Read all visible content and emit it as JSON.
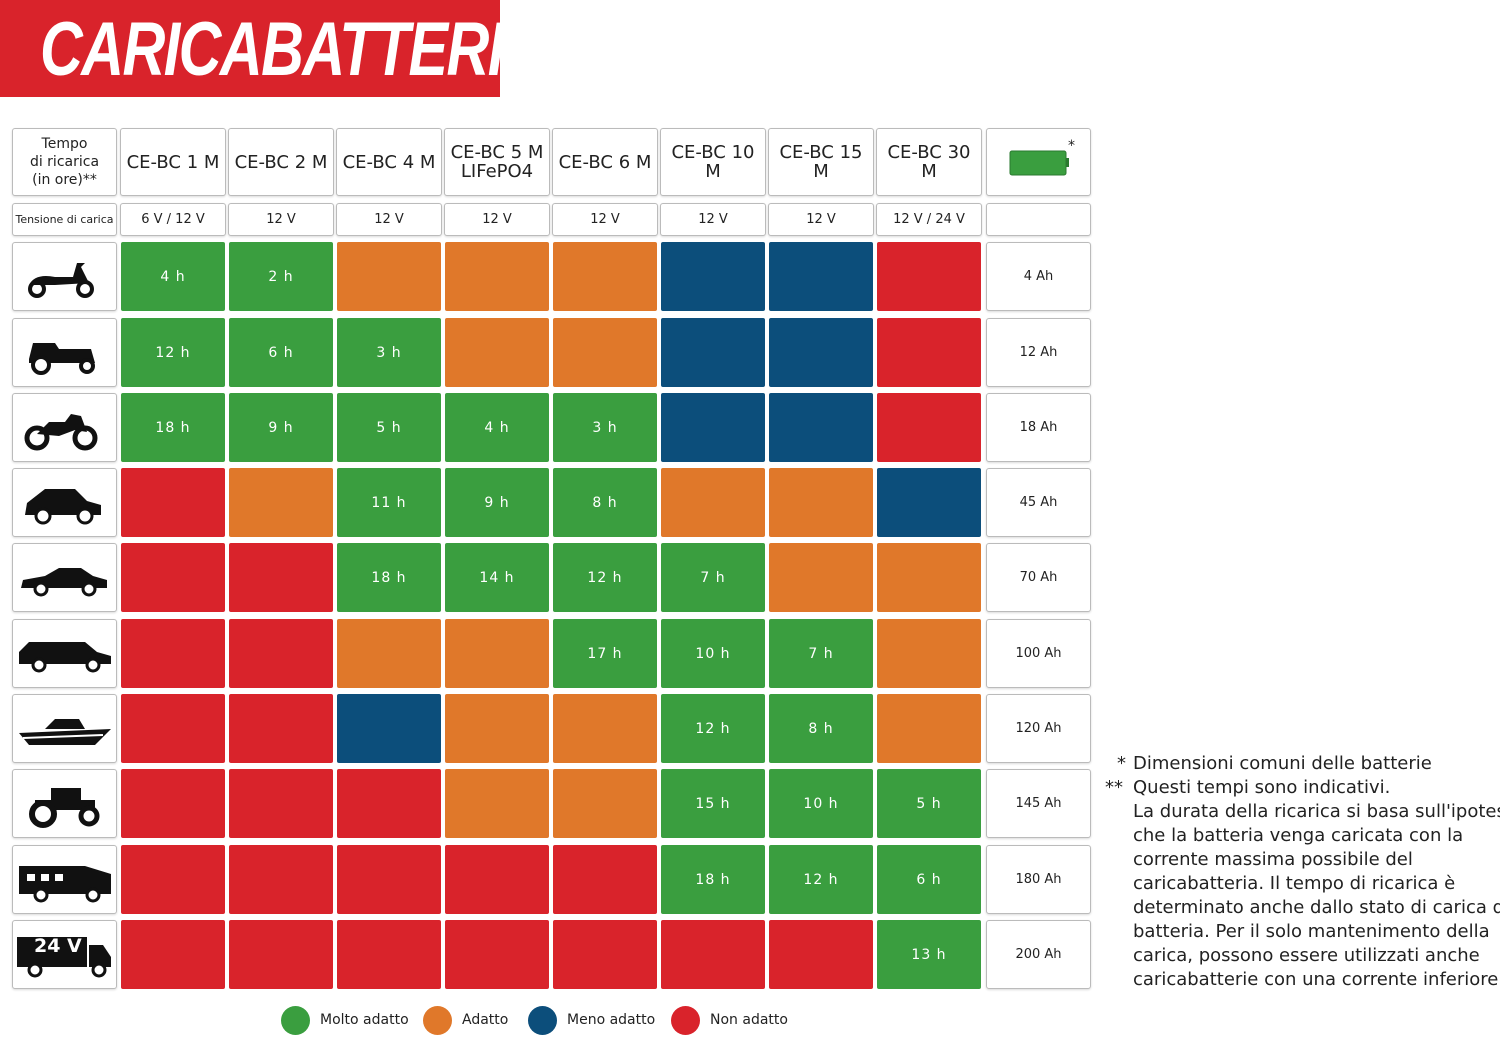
{
  "header": {
    "title": "CARICABATTERIE"
  },
  "table": {
    "corner": [
      "Tempo",
      "di ricarica",
      "(in ore)**"
    ],
    "voltage_label": "Tensione di carica",
    "models": [
      [
        "CE-BC 1 M"
      ],
      [
        "CE-BC 2 M"
      ],
      [
        "CE-BC 4 M"
      ],
      [
        "CE-BC 5 M",
        "LIFePO4"
      ],
      [
        "CE-BC 6 M"
      ],
      [
        "CE-BC 10 M"
      ],
      [
        "CE-BC 15 M"
      ],
      [
        "CE-BC 30 M"
      ]
    ],
    "voltages": [
      "6 V / 12 V",
      "12 V",
      "12 V",
      "12 V",
      "12 V",
      "12 V",
      "12 V",
      "12 V / 24 V"
    ],
    "battery_marker": "*",
    "rows": [
      {
        "ratings": [
          0,
          0,
          1,
          1,
          1,
          2,
          2,
          3
        ],
        "times": [
          "4 h",
          "2 h",
          null,
          null,
          null,
          null,
          null,
          null
        ],
        "capacity": "4 Ah"
      },
      {
        "ratings": [
          0,
          0,
          0,
          1,
          1,
          2,
          2,
          3
        ],
        "times": [
          "12 h",
          "6 h",
          "3 h",
          null,
          null,
          null,
          null,
          null
        ],
        "capacity": "12 Ah"
      },
      {
        "ratings": [
          0,
          0,
          0,
          0,
          0,
          2,
          2,
          3
        ],
        "times": [
          "18 h",
          "9 h",
          "5 h",
          "4 h",
          "3 h",
          null,
          null,
          null
        ],
        "capacity": "18 Ah"
      },
      {
        "ratings": [
          3,
          1,
          0,
          0,
          0,
          1,
          1,
          2
        ],
        "times": [
          null,
          null,
          "11 h",
          "9 h",
          "8 h",
          null,
          null,
          null
        ],
        "capacity": "45 Ah"
      },
      {
        "ratings": [
          3,
          3,
          0,
          0,
          0,
          0,
          1,
          1
        ],
        "times": [
          null,
          null,
          "18 h",
          "14 h",
          "12 h",
          "7 h",
          null,
          null
        ],
        "capacity": "70 Ah"
      },
      {
        "ratings": [
          3,
          3,
          1,
          1,
          0,
          0,
          0,
          1
        ],
        "times": [
          null,
          null,
          null,
          null,
          "17 h",
          "10 h",
          "7 h",
          null
        ],
        "capacity": "100 Ah"
      },
      {
        "ratings": [
          3,
          3,
          2,
          1,
          1,
          0,
          0,
          1
        ],
        "times": [
          null,
          null,
          null,
          null,
          null,
          "12 h",
          "8 h",
          null
        ],
        "capacity": "120 Ah"
      },
      {
        "ratings": [
          3,
          3,
          3,
          1,
          1,
          0,
          0,
          0
        ],
        "times": [
          null,
          null,
          null,
          null,
          null,
          "15 h",
          "10 h",
          "5 h"
        ],
        "capacity": "145 Ah"
      },
      {
        "ratings": [
          3,
          3,
          3,
          3,
          3,
          0,
          0,
          0
        ],
        "times": [
          null,
          null,
          null,
          null,
          null,
          "18 h",
          "12 h",
          "6 h"
        ],
        "capacity": "180 Ah"
      },
      {
        "ratings": [
          3,
          3,
          3,
          3,
          3,
          3,
          3,
          0
        ],
        "times": [
          null,
          null,
          null,
          null,
          null,
          null,
          null,
          "13 h"
        ],
        "capacity": "200 Ah",
        "icon_text": "24 V"
      }
    ]
  },
  "legend": [
    {
      "label": "Molto adatto",
      "color": "#3a9e3f"
    },
    {
      "label": "Adatto",
      "color": "#e0782a"
    },
    {
      "label": "Meno adatto",
      "color": "#0c4e7b"
    },
    {
      "label": "Non adatto",
      "color": "#d9232b"
    }
  ],
  "notes": [
    {
      "marker": "*",
      "lines": [
        "Dimensioni comuni delle batterie"
      ]
    },
    {
      "marker": "**",
      "lines": [
        "Questi tempi sono indicativi.",
        "La durata della ricarica si basa sull'ipotesi",
        "che la batteria venga caricata con la",
        "corrente massima possibile del",
        "caricabatteria. Il tempo di ricarica è",
        "determinato anche dallo stato di carica della",
        "batteria. Per il solo mantenimento della",
        "carica, possono essere utilizzati anche",
        "caricabatterie con una corrente inferiore."
      ]
    }
  ]
}
